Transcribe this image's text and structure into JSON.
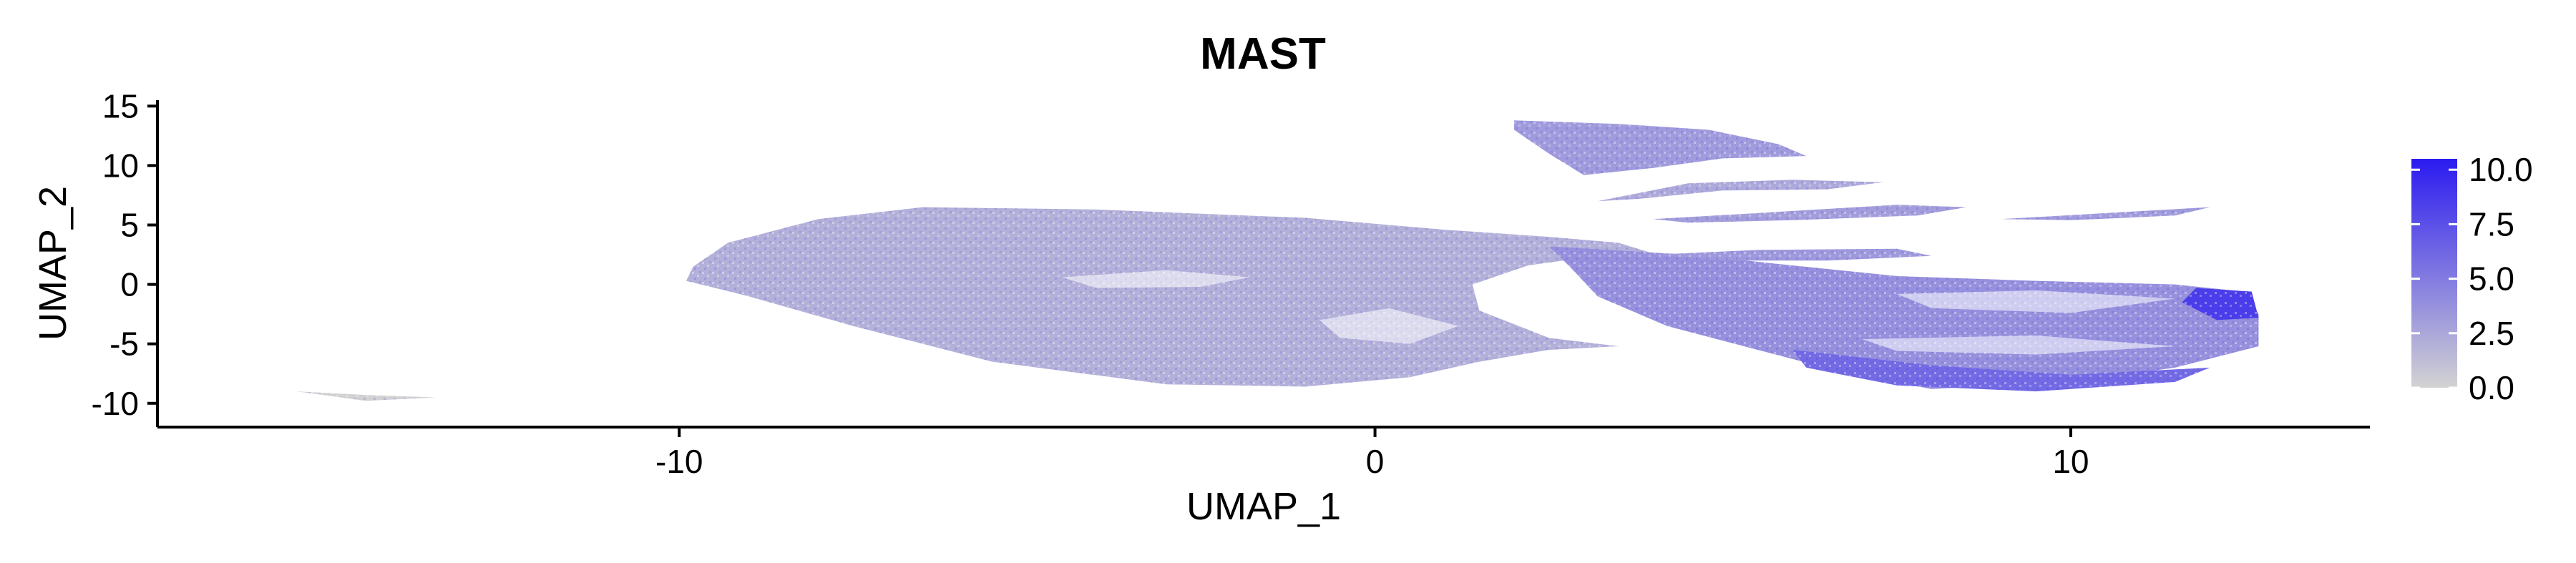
{
  "chart_data": {
    "type": "scatter",
    "title": "MAST",
    "xlabel": "UMAP_1",
    "ylabel": "UMAP_2",
    "xlim": [
      -17.5,
      14.3
    ],
    "ylim": [
      -12,
      15.5
    ],
    "x_ticks": [
      -10,
      0,
      10
    ],
    "y_ticks": [
      15,
      10,
      5,
      0,
      -5,
      -10
    ],
    "x_tick_labels": [
      "-10",
      "0",
      "10"
    ],
    "y_tick_labels": [
      "15",
      "10",
      "5",
      "0",
      "-5",
      "-10"
    ],
    "grid": false,
    "legend": {
      "placement": "right",
      "scale_min": 0,
      "scale_max": 10.5,
      "ticks": [
        10,
        7.5,
        5,
        2.5,
        0
      ],
      "tick_labels": [
        "10.0",
        "7.5",
        "5.0",
        "2.5",
        "0.0"
      ],
      "color_low": "#d3d3d3",
      "color_high": "#2b1bf0"
    },
    "regions": [
      {
        "name": "main-body",
        "points": [
          [
            -9.8,
            1.5
          ],
          [
            -9.3,
            3.5
          ],
          [
            -8.0,
            5.5
          ],
          [
            -6.5,
            6.5
          ],
          [
            -4.0,
            6.3
          ],
          [
            -1.0,
            5.6
          ],
          [
            1.0,
            4.6
          ],
          [
            2.5,
            4.0
          ],
          [
            3.5,
            3.5
          ],
          [
            4.0,
            2.6
          ],
          [
            3.2,
            2.4
          ],
          [
            2.2,
            1.6
          ],
          [
            1.4,
            0.0
          ],
          [
            1.5,
            -2.2
          ],
          [
            2.5,
            -4.5
          ],
          [
            3.5,
            -5.2
          ],
          [
            2.5,
            -5.5
          ],
          [
            1.5,
            -6.5
          ],
          [
            0.5,
            -7.8
          ],
          [
            -1.0,
            -8.6
          ],
          [
            -3.0,
            -8.4
          ],
          [
            -5.5,
            -6.5
          ],
          [
            -7.5,
            -3.5
          ],
          [
            -9.0,
            -1.0
          ],
          [
            -9.9,
            0.3
          ]
        ],
        "level": 2.0
      },
      {
        "name": "right-lobe",
        "points": [
          [
            2.5,
            3.2
          ],
          [
            4.5,
            2.5
          ],
          [
            6.0,
            1.6
          ],
          [
            7.5,
            0.7
          ],
          [
            9.5,
            0.3
          ],
          [
            11.5,
            0.0
          ],
          [
            12.5,
            -0.6
          ],
          [
            12.7,
            -2.5
          ],
          [
            12.7,
            -5.2
          ],
          [
            11.5,
            -7.0
          ],
          [
            10.0,
            -8.2
          ],
          [
            8.0,
            -8.8
          ],
          [
            6.8,
            -7.5
          ],
          [
            5.5,
            -5.5
          ],
          [
            4.2,
            -3.5
          ],
          [
            3.2,
            -1.0
          ],
          [
            2.8,
            1.5
          ]
        ],
        "level": 3.8
      },
      {
        "name": "right-lobe-highlight",
        "points": [
          [
            11.8,
            -0.3
          ],
          [
            12.6,
            -0.6
          ],
          [
            12.7,
            -2.8
          ],
          [
            12.1,
            -3.0
          ],
          [
            11.6,
            -1.5
          ]
        ],
        "level": 8.5
      },
      {
        "name": "right-lobe-lower-band",
        "points": [
          [
            6.0,
            -5.5
          ],
          [
            8.0,
            -6.8
          ],
          [
            10.0,
            -7.6
          ],
          [
            12.0,
            -7.0
          ],
          [
            11.5,
            -8.2
          ],
          [
            9.5,
            -9.0
          ],
          [
            7.5,
            -8.5
          ],
          [
            6.2,
            -7.0
          ]
        ],
        "level": 6.0
      },
      {
        "name": "top-cluster",
        "points": [
          [
            2.0,
            13.8
          ],
          [
            3.5,
            13.5
          ],
          [
            4.8,
            13.0
          ],
          [
            5.8,
            11.8
          ],
          [
            6.2,
            10.8
          ],
          [
            5.0,
            10.6
          ],
          [
            4.0,
            9.8
          ],
          [
            3.0,
            9.2
          ],
          [
            2.5,
            11.0
          ],
          [
            2.0,
            13.0
          ]
        ],
        "level": 3.2
      },
      {
        "name": "upper-streak",
        "points": [
          [
            3.2,
            7.0
          ],
          [
            4.5,
            8.5
          ],
          [
            6.0,
            8.8
          ],
          [
            7.3,
            8.6
          ],
          [
            6.5,
            8.0
          ],
          [
            5.0,
            7.9
          ],
          [
            3.8,
            7.2
          ]
        ],
        "level": 2.4
      },
      {
        "name": "middle-streak",
        "points": [
          [
            4.0,
            5.5
          ],
          [
            5.5,
            6.0
          ],
          [
            7.5,
            6.7
          ],
          [
            8.5,
            6.5
          ],
          [
            7.8,
            5.8
          ],
          [
            6.0,
            5.4
          ],
          [
            4.5,
            5.2
          ]
        ],
        "level": 3.0
      },
      {
        "name": "far-right-streak",
        "points": [
          [
            9.0,
            5.5
          ],
          [
            10.5,
            6.0
          ],
          [
            12.0,
            6.5
          ],
          [
            11.5,
            5.8
          ],
          [
            10.0,
            5.4
          ]
        ],
        "level": 3.2
      },
      {
        "name": "lower-streak",
        "points": [
          [
            4.0,
            2.5
          ],
          [
            5.5,
            2.9
          ],
          [
            7.5,
            3.0
          ],
          [
            8.0,
            2.4
          ],
          [
            6.5,
            2.0
          ],
          [
            5.0,
            2.0
          ]
        ],
        "level": 3.3
      },
      {
        "name": "bottom-left-arc",
        "points": [
          [
            -15.5,
            -9.0
          ],
          [
            -14.5,
            -9.8
          ],
          [
            -13.5,
            -9.5
          ],
          [
            -14.5,
            -9.3
          ]
        ],
        "level": 0.1
      }
    ],
    "holes": [
      {
        "name": "cavity-center-left",
        "points": [
          [
            -4.5,
            0.6
          ],
          [
            -3.0,
            1.2
          ],
          [
            -1.8,
            0.6
          ],
          [
            -2.5,
            -0.2
          ],
          [
            -4.0,
            -0.3
          ]
        ]
      },
      {
        "name": "cavity-lower-center",
        "points": [
          [
            -0.8,
            -3.0
          ],
          [
            0.2,
            -2.0
          ],
          [
            1.2,
            -3.5
          ],
          [
            0.5,
            -5.0
          ],
          [
            -0.5,
            -4.5
          ]
        ]
      },
      {
        "name": "cavity-right-lobe-upper",
        "points": [
          [
            7.5,
            -0.8
          ],
          [
            9.5,
            -0.5
          ],
          [
            11.5,
            -1.2
          ],
          [
            10.0,
            -2.4
          ],
          [
            8.0,
            -2.0
          ]
        ]
      },
      {
        "name": "cavity-right-lobe-mid",
        "points": [
          [
            7.0,
            -4.6
          ],
          [
            9.5,
            -4.3
          ],
          [
            11.5,
            -5.2
          ],
          [
            9.5,
            -5.9
          ],
          [
            7.5,
            -5.6
          ]
        ]
      }
    ]
  }
}
